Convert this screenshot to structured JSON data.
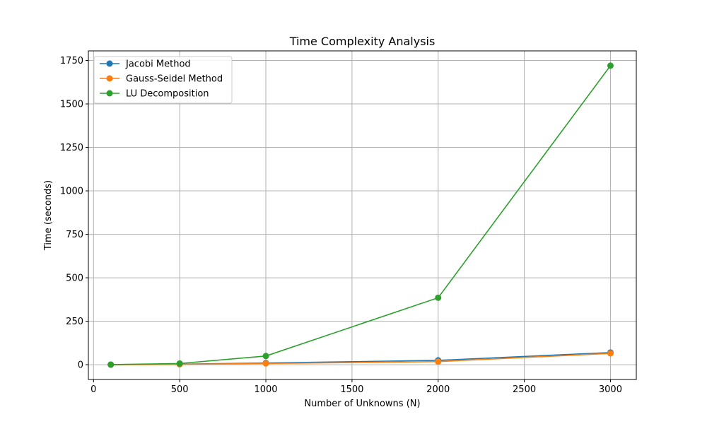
{
  "chart_data": {
    "type": "line",
    "title": "Time Complexity Analysis",
    "xlabel": "Number of Unknowns (N)",
    "ylabel": "Time (seconds)",
    "x": [
      100,
      500,
      1000,
      2000,
      3000
    ],
    "xlim": [
      -30,
      3150
    ],
    "ylim": [
      -85,
      1805
    ],
    "xticks": [
      0,
      500,
      1000,
      1500,
      2000,
      2500,
      3000
    ],
    "yticks": [
      0,
      250,
      500,
      750,
      1000,
      1250,
      1500,
      1750
    ],
    "grid": true,
    "legend_position": "top-left",
    "series": [
      {
        "name": "Jacobi Method",
        "color": "#1f77b4",
        "values": [
          0.3,
          3,
          10,
          25,
          70
        ]
      },
      {
        "name": "Gauss-Seidel Method",
        "color": "#ff7f0e",
        "values": [
          0.2,
          2,
          7,
          18,
          65
        ]
      },
      {
        "name": "LU Decomposition",
        "color": "#2ca02c",
        "values": [
          0.5,
          7,
          50,
          385,
          1720
        ]
      }
    ]
  }
}
